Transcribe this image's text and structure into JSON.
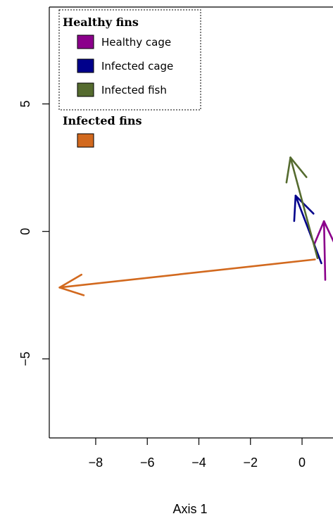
{
  "chart_data": {
    "type": "biplot-arrows",
    "xlabel": "Axis 1",
    "xlim": [
      -9.8,
      1.2
    ],
    "ylim": [
      -8.1,
      8.8
    ],
    "x_ticks": [
      -8,
      -6,
      -4,
      -2,
      0
    ],
    "x_tick_labels": [
      "−8",
      "−6",
      "−4",
      "−2",
      "0"
    ],
    "y_ticks": [
      -5,
      0,
      5
    ],
    "y_tick_labels": [
      "−5",
      "0",
      "5"
    ],
    "legend": [
      {
        "title": "Healthy fins",
        "entries": [
          {
            "label": "Healthy cage",
            "color": "#8b008b"
          },
          {
            "label": "Infected cage",
            "color": "#00008b"
          },
          {
            "label": "Infected fish",
            "color": "#556b2f"
          }
        ]
      },
      {
        "title": "Infected fins",
        "entries": [
          {
            "label": "",
            "color": "#d2691e"
          }
        ]
      }
    ],
    "series": [
      {
        "name": "Healthy cage",
        "color": "#8b008b",
        "from": [
          0.9,
          -1.9
        ],
        "to": [
          0.85,
          0.4
        ]
      },
      {
        "name": "Infected cage",
        "color": "#00008b",
        "from": [
          0.75,
          -1.25
        ],
        "to": [
          -0.25,
          1.4
        ]
      },
      {
        "name": "Infected fish",
        "color": "#556b2f",
        "from": [
          0.6,
          -1.05
        ],
        "to": [
          -0.45,
          2.9
        ]
      },
      {
        "name": "Infected fins",
        "color": "#d2691e",
        "from": [
          0.5,
          -1.1
        ],
        "to": [
          -9.4,
          -2.2
        ]
      }
    ]
  }
}
